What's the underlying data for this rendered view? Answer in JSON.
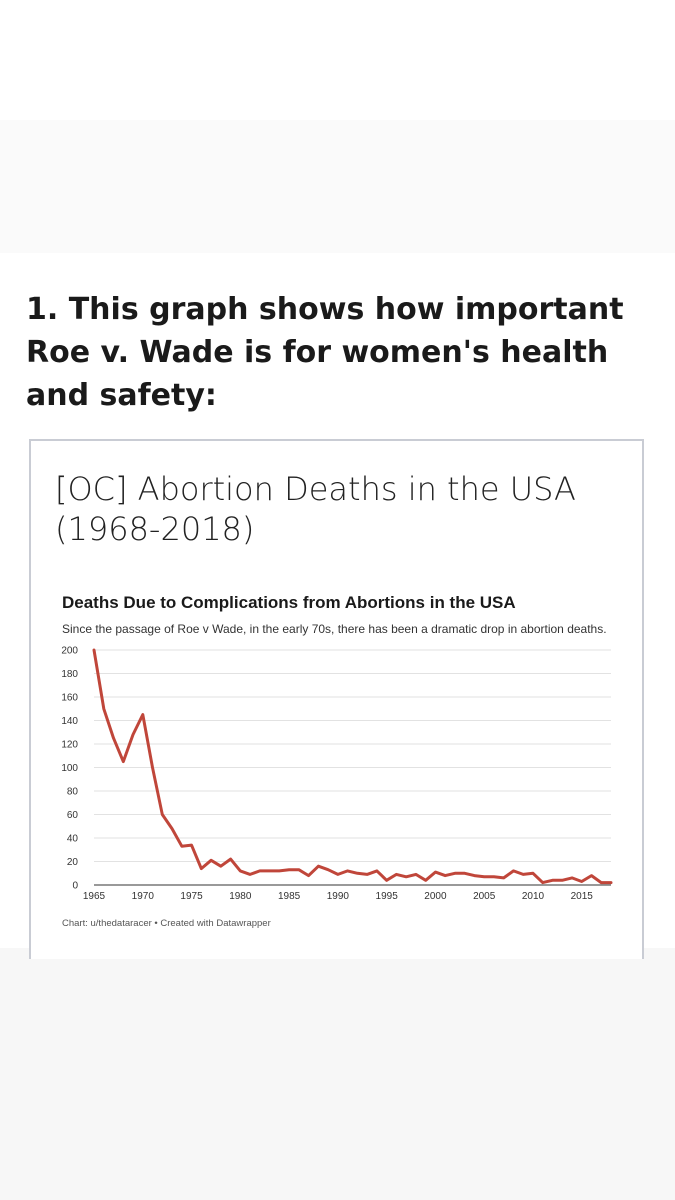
{
  "headline": "1. This graph shows how important Roe v. Wade is for women's health and safety:",
  "post_title": "[OC] Abortion Deaths in the USA (1968-2018)",
  "chart_data": {
    "type": "line",
    "title": "Deaths Due to Complications from Abortions in the USA",
    "subtitle": "Since the passage of Roe v Wade, in the early 70s, there has been a dramatic drop in abortion deaths.",
    "source": "Chart: u/thedataracer • Created with Datawrapper",
    "xlabel": "",
    "ylabel": "",
    "xlim": [
      1965,
      2018
    ],
    "ylim": [
      0,
      200
    ],
    "grid": true,
    "line_color": "#c0463a",
    "x_ticks": [
      1965,
      1970,
      1975,
      1980,
      1985,
      1990,
      1995,
      2000,
      2005,
      2010,
      2015
    ],
    "y_ticks": [
      0,
      20,
      40,
      60,
      80,
      100,
      120,
      140,
      160,
      180,
      200
    ],
    "x": [
      1965,
      1966,
      1967,
      1968,
      1969,
      1970,
      1971,
      1972,
      1973,
      1974,
      1975,
      1976,
      1977,
      1978,
      1979,
      1980,
      1981,
      1982,
      1983,
      1984,
      1985,
      1986,
      1987,
      1988,
      1989,
      1990,
      1991,
      1992,
      1993,
      1994,
      1995,
      1996,
      1997,
      1998,
      1999,
      2000,
      2001,
      2002,
      2003,
      2004,
      2005,
      2006,
      2007,
      2008,
      2009,
      2010,
      2011,
      2012,
      2013,
      2014,
      2015,
      2016,
      2017,
      2018
    ],
    "y": [
      200,
      150,
      125,
      105,
      128,
      145,
      100,
      60,
      48,
      33,
      34,
      14,
      21,
      16,
      22,
      12,
      9,
      12,
      12,
      12,
      13,
      13,
      8,
      16,
      13,
      9,
      12,
      10,
      9,
      12,
      4,
      9,
      7,
      9,
      4,
      11,
      8,
      10,
      10,
      8,
      7,
      7,
      6,
      12,
      9,
      10,
      2,
      4,
      4,
      6,
      3,
      8,
      2,
      2
    ]
  }
}
